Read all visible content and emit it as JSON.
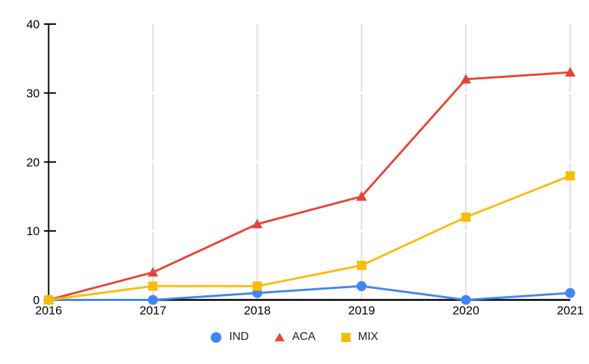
{
  "chart_data": {
    "type": "line",
    "title": "",
    "x_labels": [
      "2016",
      "2017",
      "2018",
      "2019",
      "2020",
      "2021"
    ],
    "y_tick_labels": [
      "0",
      "10",
      "20",
      "30",
      "40"
    ],
    "yticks": [
      0,
      10,
      20,
      30,
      40
    ],
    "ylim": [
      0,
      40
    ],
    "grid": "vertical",
    "legend_position": "bottom",
    "series": [
      {
        "name": "IND",
        "marker": "circle",
        "color": "#4285F4",
        "values": [
          0,
          0,
          1,
          2,
          0,
          1
        ]
      },
      {
        "name": "ACA",
        "marker": "triangle",
        "color": "#EA4335",
        "values": [
          0,
          4,
          11,
          15,
          32,
          33
        ]
      },
      {
        "name": "MIX",
        "marker": "square",
        "color": "#FBBC04",
        "values": [
          0,
          2,
          2,
          5,
          12,
          18
        ]
      }
    ],
    "colors": {
      "gridline": "#dcdcdc",
      "axis": "#000000",
      "background": "#ffffff",
      "label": "#000000",
      "legend_text": "#202124"
    }
  }
}
